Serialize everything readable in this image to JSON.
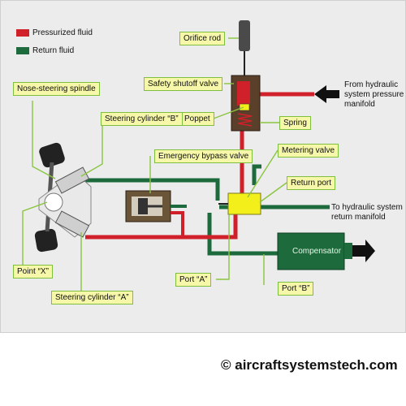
{
  "legend": {
    "items": [
      {
        "label": "Pressurized fluid",
        "color": "#d0202a"
      },
      {
        "label": "Return fluid",
        "color": "#1d6b3c"
      }
    ]
  },
  "callouts": {
    "orifice_rod": "Orifice rod",
    "safety_shutoff_valve": "Safety shutoff valve",
    "poppet": "Poppet",
    "spring": "Spring",
    "nose_steering_spindle": "Nose-steering spindle",
    "steering_cylinder_b": "Steering cylinder “B”",
    "emergency_bypass_valve": "Emergency bypass valve",
    "metering_valve": "Metering valve",
    "return_port": "Return port",
    "point_x": "Point “X”",
    "port_a": "Port “A”",
    "port_b": "Port “B”",
    "steering_cylinder_a": "Steering cylinder “A”"
  },
  "annotations": {
    "from_pressure": [
      "From hydraulic",
      "system pressure",
      "manifold"
    ],
    "to_return": [
      "To hydraulic system",
      "return manifold"
    ]
  },
  "components": {
    "compensator": "Compensator"
  },
  "colors": {
    "pressure": "#d0202a",
    "return": "#1d6b3c",
    "callout_bg": "#f6f7a8",
    "callout_border": "#7fbf3f",
    "valve_yellow": "#f2ef1a"
  },
  "credit": "© aircraftsystemstech.com"
}
